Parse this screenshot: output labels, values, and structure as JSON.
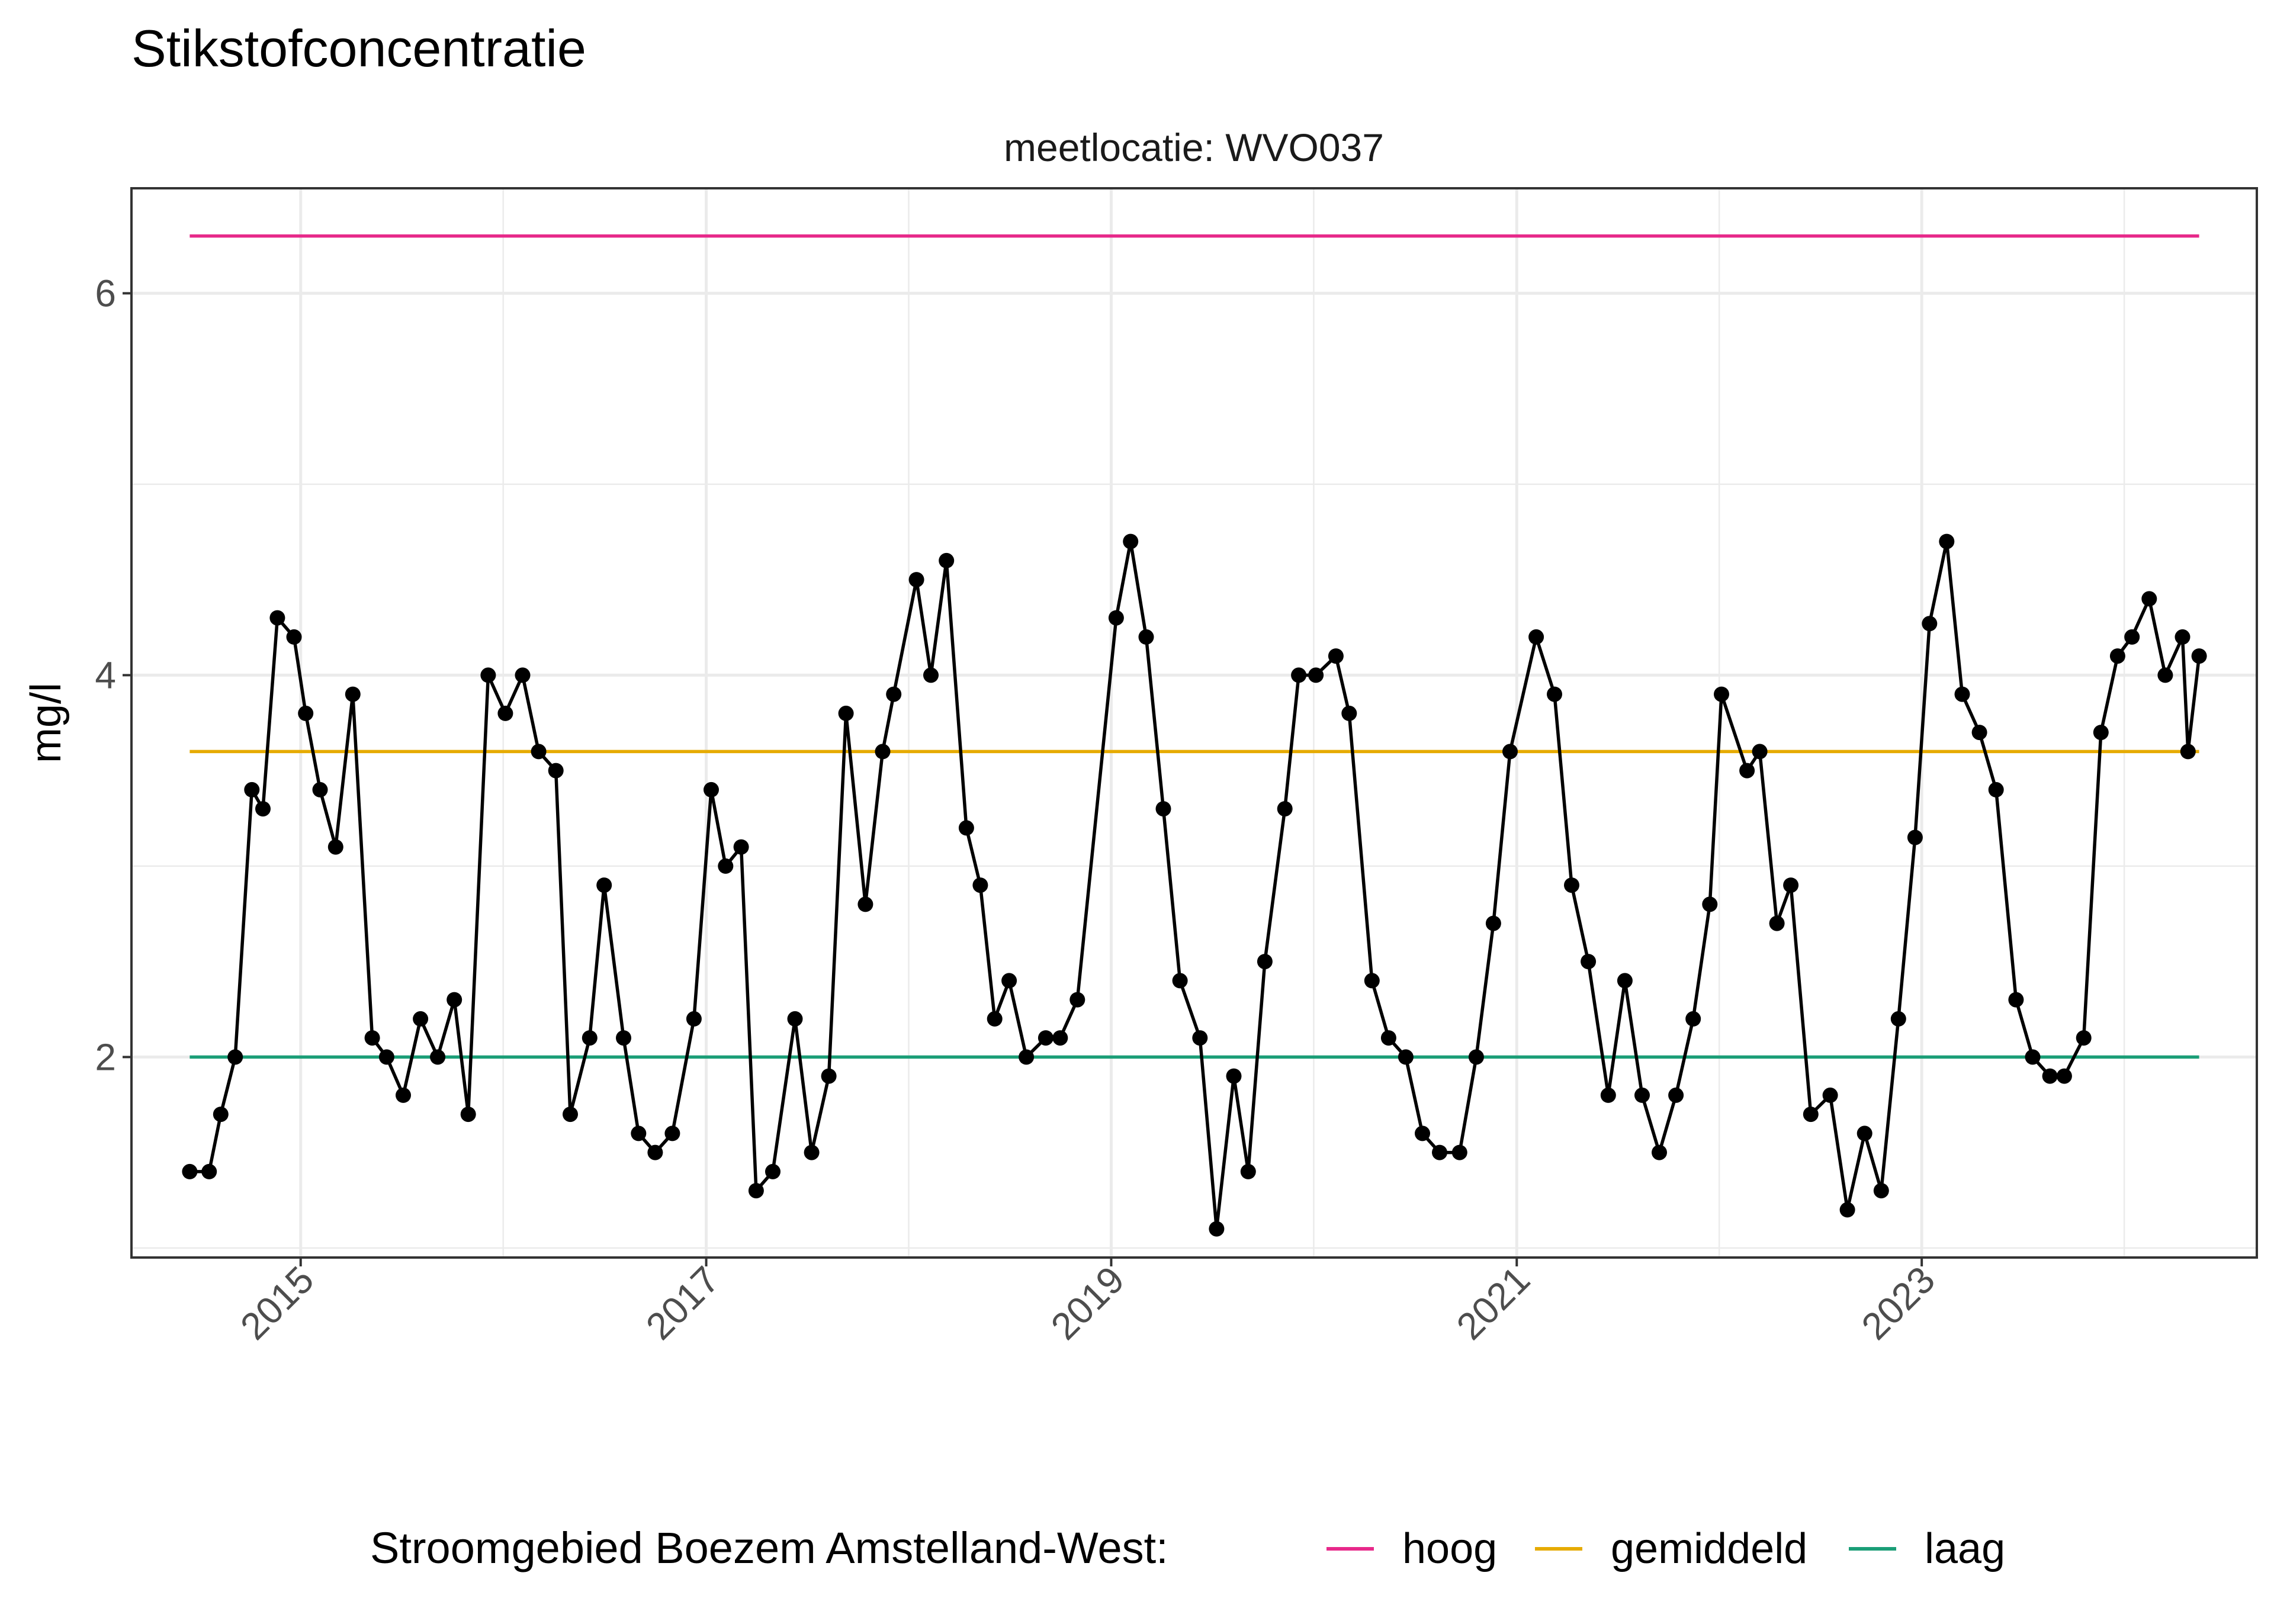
{
  "chart_data": {
    "type": "line",
    "title": "Stikstofconcentratie",
    "subtitle": "meetlocatie: WVO037",
    "xlabel": "",
    "ylabel": "mg/l",
    "x_ticks": [
      "2015",
      "2017",
      "2019",
      "2021",
      "2023"
    ],
    "y_ticks": [
      "2",
      "4",
      "6"
    ],
    "xlim": [
      "2014-03-02",
      "2024-08-27"
    ],
    "ylim": [
      0.95,
      6.55
    ],
    "grid": true,
    "legend_position": "bottom",
    "legend": {
      "title": "Stroomgebied Boezem Amstelland-West:",
      "items": [
        {
          "label": "hoog",
          "color": "#e7298a"
        },
        {
          "label": "gemiddeld",
          "color": "#e6ab02"
        },
        {
          "label": "laag",
          "color": "#1b9e77"
        }
      ]
    },
    "reference_lines": [
      {
        "label": "hoog",
        "value": 6.3,
        "color": "#e7298a",
        "x_start": "2014-06-15",
        "x_end": "2024-05-15"
      },
      {
        "label": "gemiddeld",
        "value": 3.6,
        "color": "#e6ab02",
        "x_start": "2014-06-15",
        "x_end": "2024-05-15"
      },
      {
        "label": "laag",
        "value": 2.0,
        "color": "#1b9e77",
        "x_start": "2014-06-15",
        "x_end": "2024-05-15"
      }
    ],
    "series": [
      {
        "color": "#000000",
        "points": [
          [
            "2014-06-15",
            1.4
          ],
          [
            "2014-07-20",
            1.4
          ],
          [
            "2014-08-10",
            1.7
          ],
          [
            "2014-09-05",
            2.0
          ],
          [
            "2014-10-05",
            3.4
          ],
          [
            "2014-10-25",
            3.3
          ],
          [
            "2014-11-20",
            4.3
          ],
          [
            "2014-12-20",
            4.2
          ],
          [
            "2015-01-10",
            3.8
          ],
          [
            "2015-02-05",
            3.4
          ],
          [
            "2015-03-05",
            3.1
          ],
          [
            "2015-04-05",
            3.9
          ],
          [
            "2015-05-10",
            2.1
          ],
          [
            "2015-06-05",
            2.0
          ],
          [
            "2015-07-05",
            1.8
          ],
          [
            "2015-08-05",
            2.2
          ],
          [
            "2015-09-05",
            2.0
          ],
          [
            "2015-10-05",
            2.3
          ],
          [
            "2015-10-30",
            1.7
          ],
          [
            "2015-12-05",
            4.0
          ],
          [
            "2016-01-05",
            3.8
          ],
          [
            "2016-02-05",
            4.0
          ],
          [
            "2016-03-05",
            3.6
          ],
          [
            "2016-04-05",
            3.5
          ],
          [
            "2016-05-01",
            1.7
          ],
          [
            "2016-06-05",
            2.1
          ],
          [
            "2016-07-01",
            2.9
          ],
          [
            "2016-08-05",
            2.1
          ],
          [
            "2016-09-01",
            1.6
          ],
          [
            "2016-10-01",
            1.5
          ],
          [
            "2016-11-01",
            1.6
          ],
          [
            "2016-12-10",
            2.2
          ],
          [
            "2017-01-10",
            3.4
          ],
          [
            "2017-02-05",
            3.0
          ],
          [
            "2017-03-05",
            3.1
          ],
          [
            "2017-04-01",
            1.3
          ],
          [
            "2017-05-01",
            1.4
          ],
          [
            "2017-06-10",
            2.2
          ],
          [
            "2017-07-10",
            1.5
          ],
          [
            "2017-08-10",
            1.9
          ],
          [
            "2017-09-10",
            3.8
          ],
          [
            "2017-10-15",
            2.8
          ],
          [
            "2017-11-15",
            3.6
          ],
          [
            "2017-12-05",
            3.9
          ],
          [
            "2018-01-15",
            4.5
          ],
          [
            "2018-02-10",
            4.0
          ],
          [
            "2018-03-10",
            4.6
          ],
          [
            "2018-04-15",
            3.2
          ],
          [
            "2018-05-10",
            2.9
          ],
          [
            "2018-06-05",
            2.2
          ],
          [
            "2018-07-01",
            2.4
          ],
          [
            "2018-08-01",
            2.0
          ],
          [
            "2018-09-05",
            2.1
          ],
          [
            "2018-10-01",
            2.1
          ],
          [
            "2018-11-01",
            2.3
          ],
          [
            "2019-01-10",
            4.3
          ],
          [
            "2019-02-05",
            4.7
          ],
          [
            "2019-03-05",
            4.2
          ],
          [
            "2019-04-05",
            3.3
          ],
          [
            "2019-05-05",
            2.4
          ],
          [
            "2019-06-10",
            2.1
          ],
          [
            "2019-07-10",
            1.1
          ],
          [
            "2019-08-10",
            1.9
          ],
          [
            "2019-09-05",
            1.4
          ],
          [
            "2019-10-05",
            2.5
          ],
          [
            "2019-11-10",
            3.3
          ],
          [
            "2019-12-05",
            4.0
          ],
          [
            "2020-01-05",
            4.0
          ],
          [
            "2020-02-10",
            4.1
          ],
          [
            "2020-03-05",
            3.8
          ],
          [
            "2020-04-15",
            2.4
          ],
          [
            "2020-05-15",
            2.1
          ],
          [
            "2020-06-15",
            2.0
          ],
          [
            "2020-07-15",
            1.6
          ],
          [
            "2020-08-15",
            1.5
          ],
          [
            "2020-09-20",
            1.5
          ],
          [
            "2020-10-20",
            2.0
          ],
          [
            "2020-11-20",
            2.7
          ],
          [
            "2020-12-20",
            3.6
          ],
          [
            "2021-02-05",
            4.2
          ],
          [
            "2021-03-10",
            3.9
          ],
          [
            "2021-04-10",
            2.9
          ],
          [
            "2021-05-10",
            2.5
          ],
          [
            "2021-06-15",
            1.8
          ],
          [
            "2021-07-15",
            2.4
          ],
          [
            "2021-08-15",
            1.8
          ],
          [
            "2021-09-15",
            1.5
          ],
          [
            "2021-10-15",
            1.8
          ],
          [
            "2021-11-15",
            2.2
          ],
          [
            "2021-12-15",
            2.8
          ],
          [
            "2022-01-05",
            3.9
          ],
          [
            "2022-02-20",
            3.5
          ],
          [
            "2022-03-15",
            3.6
          ],
          [
            "2022-04-15",
            2.7
          ],
          [
            "2022-05-10",
            2.9
          ],
          [
            "2022-06-15",
            1.7
          ],
          [
            "2022-07-20",
            1.8
          ],
          [
            "2022-08-20",
            1.2
          ],
          [
            "2022-09-20",
            1.6
          ],
          [
            "2022-10-20",
            1.3
          ],
          [
            "2022-11-20",
            2.2
          ],
          [
            "2022-12-20",
            3.15
          ],
          [
            "2023-01-15",
            4.27
          ],
          [
            "2023-02-15",
            4.7
          ],
          [
            "2023-03-15",
            3.9
          ],
          [
            "2023-04-15",
            3.7
          ],
          [
            "2023-05-15",
            3.4
          ],
          [
            "2023-06-20",
            2.3
          ],
          [
            "2023-07-20",
            2.0
          ],
          [
            "2023-08-20",
            1.9
          ],
          [
            "2023-09-15",
            1.9
          ],
          [
            "2023-10-20",
            2.1
          ],
          [
            "2023-11-20",
            3.7
          ],
          [
            "2023-12-20",
            4.1
          ],
          [
            "2024-01-15",
            4.2
          ],
          [
            "2024-02-15",
            4.4
          ],
          [
            "2024-03-15",
            4.0
          ],
          [
            "2024-04-15",
            4.2
          ],
          [
            "2024-04-25",
            3.6
          ],
          [
            "2024-05-15",
            4.1
          ]
        ]
      }
    ]
  }
}
